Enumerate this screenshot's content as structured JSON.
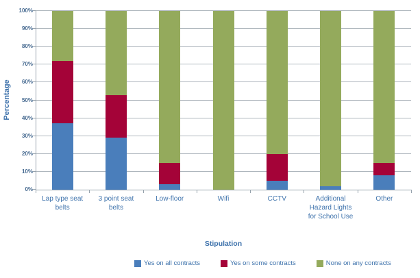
{
  "chart_data": {
    "type": "bar",
    "stacked": true,
    "orientation": "vertical",
    "title": "",
    "xlabel": "Stipulation",
    "ylabel": "Percentage",
    "ylim": [
      0,
      100
    ],
    "ytick_step": 10,
    "ytick_suffix": "%",
    "grid": true,
    "legend_position": "bottom",
    "categories": [
      "Lap type seat belts",
      "3 point seat belts",
      "Low-floor",
      "Wifi",
      "CCTV",
      "Additional Hazard Lights for School Use",
      "Other"
    ],
    "series": [
      {
        "name": "Yes on all contracts",
        "color": "#4a7ebb",
        "values": [
          37,
          29,
          3,
          0,
          5,
          2,
          8
        ]
      },
      {
        "name": "Yes on some contracts",
        "color": "#a40338",
        "values": [
          35,
          24,
          12,
          0,
          15,
          0,
          7
        ]
      },
      {
        "name": "None on any contracts",
        "color": "#94aa5c",
        "values": [
          28,
          47,
          85,
          100,
          80,
          98,
          85
        ]
      }
    ]
  },
  "colors": {
    "background": "#ffffff",
    "text": "#3f73ac",
    "tick_text": "#44688f",
    "gridline": "#aeb6bd",
    "axis": "#96a2ac"
  }
}
